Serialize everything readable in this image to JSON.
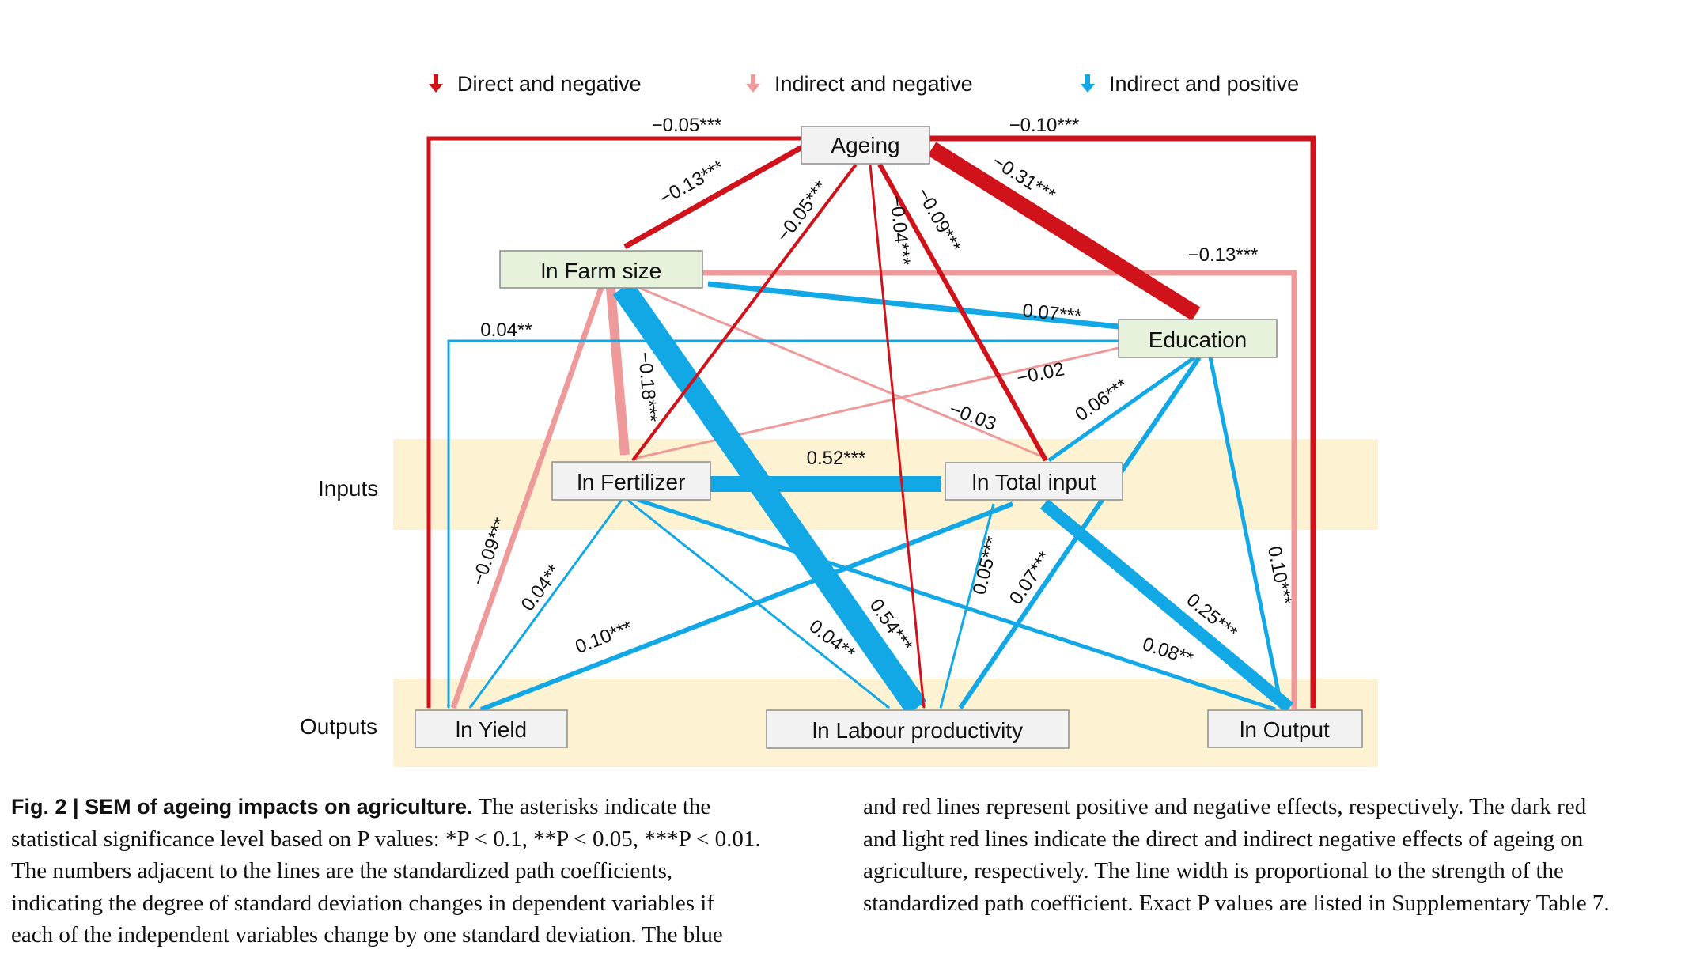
{
  "legend": [
    {
      "label": "Direct and negative",
      "color": "#d0121b"
    },
    {
      "label": "Indirect and negative",
      "color": "#ef9a9a"
    },
    {
      "label": "Indirect and positive",
      "color": "#12a8e6"
    }
  ],
  "rows": {
    "inputs": "Inputs",
    "outputs": "Outputs"
  },
  "nodes": {
    "ageing": "Ageing",
    "farm_size": "ln Farm size",
    "education": "Education",
    "fertilizer": "ln Fertilizer",
    "total_input": "ln Total input",
    "yield": "ln Yield",
    "labour": "ln Labour productivity",
    "output": "ln Output"
  },
  "paths": [
    {
      "id": "ageing-yield",
      "from": "Ageing",
      "to": "ln Yield",
      "coef": "−0.05***",
      "type": "direct-negative"
    },
    {
      "id": "ageing-output",
      "from": "Ageing",
      "to": "ln Output",
      "coef": "−0.10***",
      "type": "direct-negative"
    },
    {
      "id": "ageing-farmsize",
      "from": "Ageing",
      "to": "ln Farm size",
      "coef": "−0.13***",
      "type": "direct-negative"
    },
    {
      "id": "ageing-fertilizer",
      "from": "Ageing",
      "to": "ln Fertilizer",
      "coef": "−0.05***",
      "type": "direct-negative"
    },
    {
      "id": "ageing-labour",
      "from": "Ageing",
      "to": "ln Labour productivity",
      "coef": "−0.04***",
      "type": "direct-negative"
    },
    {
      "id": "ageing-totalinput",
      "from": "Ageing",
      "to": "ln Total input",
      "coef": "−0.09***",
      "type": "direct-negative"
    },
    {
      "id": "ageing-education",
      "from": "Ageing",
      "to": "Education",
      "coef": "−0.31***",
      "type": "direct-negative"
    },
    {
      "id": "farmsize-output",
      "from": "ln Farm size",
      "to": "ln Output",
      "coef": "−0.13***",
      "type": "indirect-negative"
    },
    {
      "id": "education-farmsize",
      "from": "Education",
      "to": "ln Farm size",
      "coef": "0.07***",
      "type": "indirect-positive"
    },
    {
      "id": "education-yield",
      "from": "Education",
      "to": "ln Yield",
      "coef": "0.04**",
      "type": "indirect-positive"
    },
    {
      "id": "education-fertilizer",
      "from": "Education",
      "to": "ln Fertilizer",
      "coef": "−0.02",
      "type": "indirect-negative"
    },
    {
      "id": "farmsize-totalinput",
      "from": "ln Farm size",
      "to": "ln Total input",
      "coef": "−0.03",
      "type": "indirect-negative"
    },
    {
      "id": "farmsize-fertilizer",
      "from": "ln Farm size",
      "to": "ln Fertilizer",
      "coef": "−0.18***",
      "type": "indirect-negative"
    },
    {
      "id": "education-totalinput",
      "from": "Education",
      "to": "ln Total input",
      "coef": "0.06***",
      "type": "indirect-positive"
    },
    {
      "id": "fertilizer-totalinput",
      "from": "ln Fertilizer",
      "to": "ln Total input",
      "coef": "0.52***",
      "type": "indirect-positive"
    },
    {
      "id": "farmsize-yield",
      "from": "ln Farm size",
      "to": "ln Yield",
      "coef": "−0.09***",
      "type": "indirect-negative"
    },
    {
      "id": "fertilizer-yield",
      "from": "ln Fertilizer",
      "to": "ln Yield",
      "coef": "0.04**",
      "type": "indirect-positive"
    },
    {
      "id": "totalinput-yield",
      "from": "ln Total input",
      "to": "ln Yield",
      "coef": "0.10***",
      "type": "indirect-positive"
    },
    {
      "id": "farmsize-labour",
      "from": "ln Farm size",
      "to": "ln Labour productivity",
      "coef": "0.54***",
      "type": "indirect-positive"
    },
    {
      "id": "fertilizer-labour",
      "from": "ln Fertilizer",
      "to": "ln Labour productivity",
      "coef": "0.04**",
      "type": "indirect-positive"
    },
    {
      "id": "totalinput-labour",
      "from": "ln Total input",
      "to": "ln Labour productivity",
      "coef": "0.05***",
      "type": "indirect-positive"
    },
    {
      "id": "education-labour",
      "from": "Education",
      "to": "ln Labour productivity",
      "coef": "0.07***",
      "type": "indirect-positive"
    },
    {
      "id": "totalinput-output",
      "from": "ln Total input",
      "to": "ln Output",
      "coef": "0.25***",
      "type": "indirect-positive"
    },
    {
      "id": "fertilizer-output",
      "from": "ln Fertilizer",
      "to": "ln Output",
      "coef": "0.08**",
      "type": "indirect-positive"
    },
    {
      "id": "education-output",
      "from": "Education",
      "to": "ln Output",
      "coef": "0.10***",
      "type": "indirect-positive"
    }
  ],
  "caption": {
    "fig_label": "Fig. 2 | SEM of ageing impacts on agriculture.",
    "lines_left": [
      " The asterisks indicate the",
      "statistical significance level based on P values: *P < 0.1, **P < 0.05, ***P < 0.01.",
      "The numbers adjacent to the lines are the standardized path coefficients,",
      "indicating the degree of standard deviation changes in dependent variables if",
      "each of the independent variables change by one standard deviation. The blue"
    ],
    "lines_right": [
      "and red lines represent positive and negative effects, respectively. The dark red",
      "and light red lines indicate the direct and indirect negative effects of ageing on",
      "agriculture, respectively. The line width is proportional to the strength of the",
      "standardized path coefficient. Exact P values are listed in Supplementary Table 7."
    ]
  }
}
